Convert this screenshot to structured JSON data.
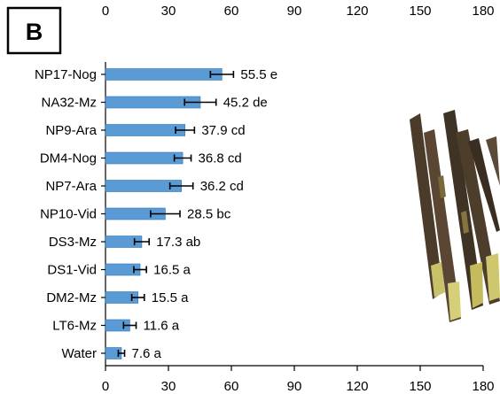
{
  "panel_label": "B",
  "colors": {
    "bar": "#5b9bd5",
    "bar_edge": "#2e75b6",
    "water_label": "#1f3fd6",
    "axis": "#000000"
  },
  "chart_data": {
    "type": "bar",
    "orientation": "horizontal",
    "title": "",
    "xlabel": "",
    "ylabel": "",
    "xlim": [
      0,
      180
    ],
    "x_ticks": [
      "0",
      "30",
      "60",
      "90",
      "120",
      "150",
      "180"
    ],
    "x_tick_values": [
      0,
      30,
      60,
      90,
      120,
      150,
      180
    ],
    "categories": [
      "NP17-Nog",
      "NA32-Mz",
      "NP9-Ara",
      "DM4-Nog",
      "NP7-Ara",
      "NP10-Vid",
      "DS3-Mz",
      "DS1-Vid",
      "DM2-Mz",
      "LT6-Mz",
      "Water"
    ],
    "values": [
      55.5,
      45.2,
      37.9,
      36.8,
      36.2,
      28.5,
      17.3,
      16.5,
      15.5,
      11.6,
      7.6
    ],
    "errors": [
      5.5,
      7.5,
      4.5,
      4,
      5.5,
      7,
      3.5,
      3,
      3,
      3,
      1.5
    ],
    "value_labels": [
      "55.5 e",
      "45.2 de",
      "37.9 cd",
      "36.8 cd",
      "36.2 cd",
      "28.5 bc",
      "17.3 ab",
      "16.5 a",
      "15.5 a",
      "11.6 a",
      "7.6 a"
    ],
    "grid": false,
    "legend": "none"
  }
}
